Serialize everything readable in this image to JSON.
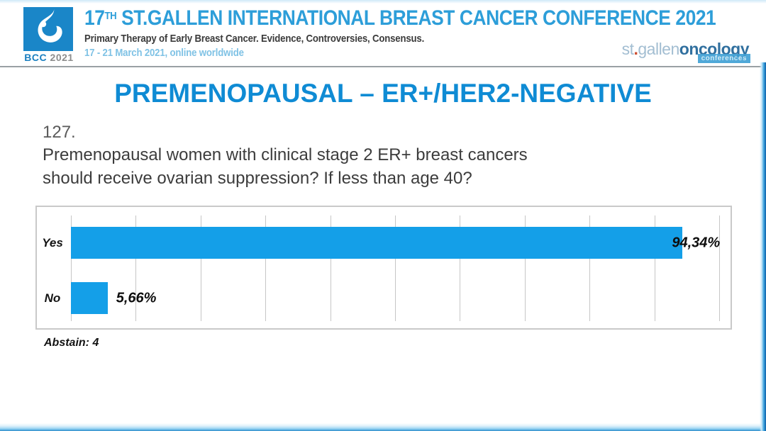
{
  "header": {
    "conference_number": "17",
    "conference_number_sup": "TH",
    "conference_title_rest": "ST.GALLEN INTERNATIONAL BREAST CANCER CONFERENCE 2021",
    "subtitle": "Primary Therapy of Early Breast Cancer. Evidence, Controversies, Consensus.",
    "dates": "17 - 21 March 2021, online worldwide",
    "logo": {
      "abbr": "BCC",
      "year": "2021"
    },
    "brand": {
      "st": "st",
      "dot": ".",
      "gallen": "gallen",
      "oncology": "oncology",
      "badge": "conferences"
    }
  },
  "slide": {
    "title": "PREMENOPAUSAL – ER+/HER2-NEGATIVE",
    "question_number": "127.",
    "question_lines": [
      "Premenopausal women with clinical stage 2 ER+ breast cancers",
      "should receive ovarian suppression? If less than age 40?"
    ]
  },
  "chart_data": {
    "type": "bar",
    "orientation": "horizontal",
    "title": "",
    "categories": [
      "Yes",
      "No"
    ],
    "values": [
      94.34,
      5.66
    ],
    "value_labels": [
      "94,34%",
      "5,66%"
    ],
    "xlim": [
      0,
      100
    ],
    "gridline_step": 10,
    "grid": true,
    "legend": "none",
    "bar_color": "#149fe8",
    "annotation": "Abstain: 4",
    "abstain_count": 4
  },
  "colors": {
    "accent_bar_blue": "#149fe8",
    "slide_title_blue": "#0f8bd4",
    "header_title_blue": "#2d9ed9",
    "dates_light_blue": "#7fc2e5",
    "logo_square_blue": "#1a86c8",
    "brand_light_blue": "#a3bed2",
    "brand_dark_blue": "#31709f",
    "brand_dot_orange": "#cc4b2e",
    "frame_edge_blue": "#0b5ea8"
  }
}
